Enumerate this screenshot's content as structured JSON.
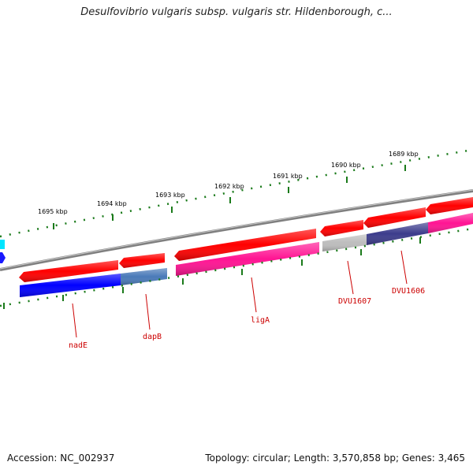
{
  "title": "Desulfovibrio vulgaris subsp. vulgaris str. Hildenborough, c...",
  "footer": {
    "accession": "Accession: NC_002937",
    "summary": "Topology: circular; Length: 3,570,858 bp; Genes: 3,465"
  },
  "scale_labels": [
    "1689 kbp",
    "1690 kbp",
    "1691 kbp",
    "1692 kbp",
    "1693 kbp",
    "1694 kbp",
    "1695 kbp"
  ],
  "gene_labels": [
    "nadE",
    "dapB",
    "ligA",
    "DVU1607",
    "DVU1606"
  ],
  "colors": {
    "backbone": "#7f7f7f",
    "forward_cds": "#ff0000",
    "ticks": "#1a7a1a",
    "nadE": "#0000ff",
    "dapB": "#4a7ab8",
    "ligA": "#ff1493",
    "DVU1607": "#bdbdbd",
    "DVU1606": "#3c3c8c",
    "label": "#cc0000"
  }
}
